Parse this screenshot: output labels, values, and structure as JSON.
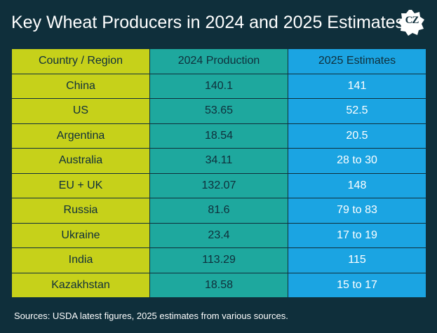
{
  "title": "Key Wheat Producers in 2024 and 2025 Estimates",
  "logo_text": "CZ",
  "colors": {
    "background": "#0f2f3b",
    "country_column": "#c6d11a",
    "production_2024_column": "#1ea89e",
    "estimates_2025_column": "#1ba4e2"
  },
  "chart_data": {
    "type": "table",
    "columns": [
      "Country / Region",
      "2024 Production",
      "2025 Estimates"
    ],
    "rows": [
      [
        "China",
        "140.1",
        "141"
      ],
      [
        "US",
        "53.65",
        "52.5"
      ],
      [
        "Argentina",
        "18.54",
        "20.5"
      ],
      [
        "Australia",
        "34.11",
        "28 to 30"
      ],
      [
        "EU + UK",
        "132.07",
        "148"
      ],
      [
        "Russia",
        "81.6",
        "79 to 83"
      ],
      [
        "Ukraine",
        "23.4",
        "17 to 19"
      ],
      [
        "India",
        "113.29",
        "115"
      ],
      [
        "Kazakhstan",
        "18.58",
        "15 to 17"
      ]
    ]
  },
  "source": "Sources: USDA latest figures, 2025 estimates from various sources."
}
